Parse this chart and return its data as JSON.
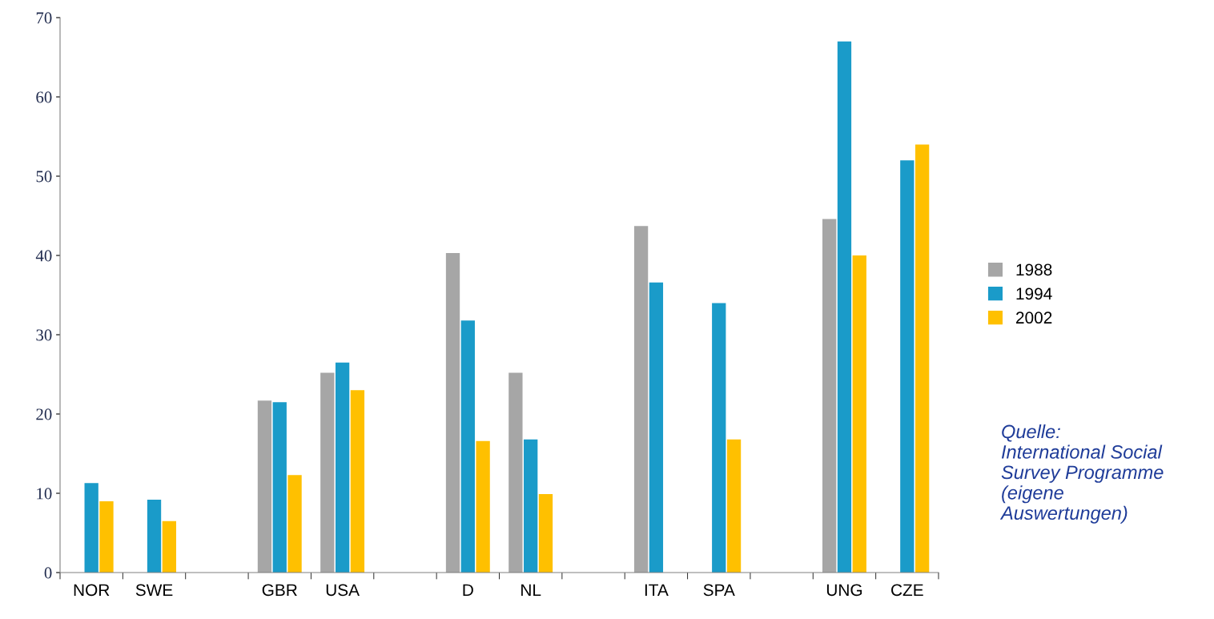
{
  "chart_data": {
    "type": "bar",
    "categories": [
      "NOR",
      "SWE",
      null,
      "GBR",
      "USA",
      null,
      "D",
      "NL",
      null,
      "ITA",
      "SPA",
      null,
      "UNG",
      "CZE"
    ],
    "series": [
      {
        "name": "1988",
        "color": "#a6a6a6",
        "values": [
          null,
          null,
          null,
          21.7,
          25.2,
          null,
          40.3,
          25.2,
          null,
          43.7,
          null,
          null,
          44.6,
          null
        ]
      },
      {
        "name": "1994",
        "color": "#1a9bc9",
        "values": [
          11.3,
          9.2,
          null,
          21.5,
          26.5,
          null,
          31.8,
          16.8,
          null,
          36.6,
          34,
          null,
          67,
          52
        ]
      },
      {
        "name": "2002",
        "color": "#ffc000",
        "values": [
          9,
          6.5,
          null,
          12.3,
          23,
          null,
          16.6,
          9.9,
          null,
          null,
          16.8,
          null,
          40,
          54
        ]
      }
    ],
    "ylim": [
      0,
      70
    ],
    "yticks": [
      0,
      10,
      20,
      30,
      40,
      50,
      60,
      70
    ],
    "grid": false,
    "legend": "right",
    "annotations": [
      "Quelle:\nInternational Social\nSurvey Programme\n(eigene\nAuswertungen)"
    ]
  }
}
